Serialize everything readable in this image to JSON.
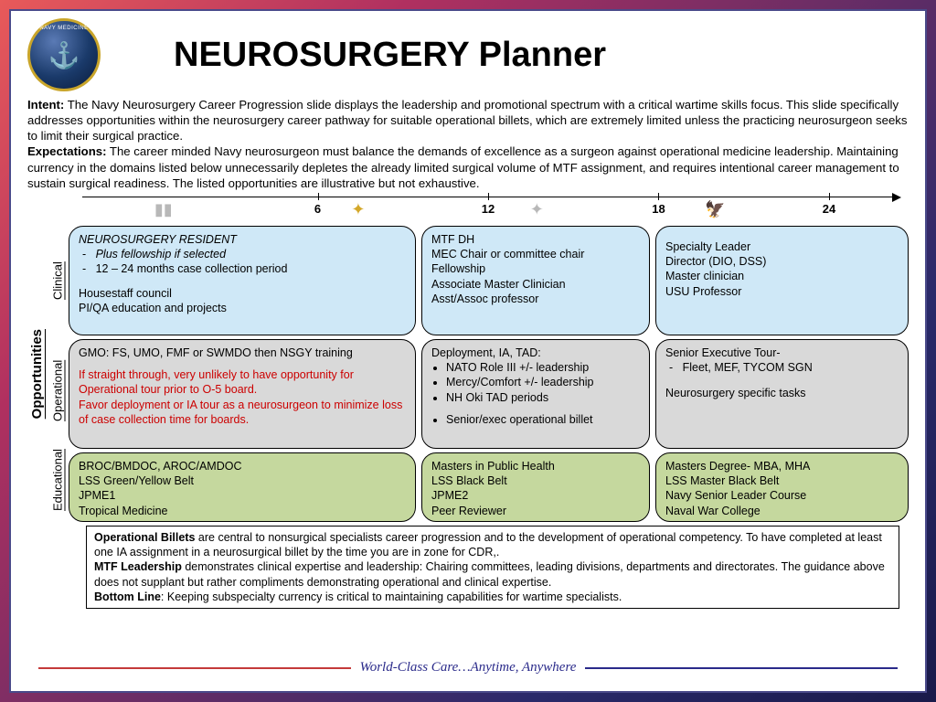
{
  "title": "NEUROSURGERY Planner",
  "intent_label": "Intent:",
  "intent_text": " The Navy Neurosurgery Career Progression slide displays the leadership and promotional spectrum with a critical wartime skills focus. This slide specifically addresses opportunities within the neurosurgery career pathway for suitable operational billets, which are extremely limited unless the practicing neurosurgeon seeks to limit their surgical practice.",
  "exp_label": "Expectations:",
  "exp_text": " The career minded Navy neurosurgeon must balance the demands of excellence as a surgeon against operational medicine leadership.  Maintaining currency in the domains listed below unnecessarily depletes the already limited surgical volume of MTF assignment, and requires intentional career management to sustain surgical readiness.  The listed opportunities are illustrative but not exhaustive.",
  "timeline": {
    "ticks": [
      "6",
      "12",
      "18",
      "24"
    ],
    "tick_positions_pct": [
      29,
      50,
      71,
      92
    ],
    "rank_icons": [
      {
        "pos_pct": 10,
        "glyph": "▮▮",
        "color": "#b8b8b8"
      },
      {
        "pos_pct": 34,
        "glyph": "✦",
        "color": "#d4a82a"
      },
      {
        "pos_pct": 56,
        "glyph": "✦",
        "color": "#b8b8b8"
      },
      {
        "pos_pct": 78,
        "glyph": "🦅",
        "color": "#999"
      }
    ]
  },
  "opportunities_label": "Opportunities",
  "row_labels": [
    "Clinical",
    "Operational",
    "Educational"
  ],
  "clinical": {
    "c1_title": "NEUROSURGERY RESIDENT",
    "c1_b1": "Plus fellowship if selected",
    "c1_b2": "12 – 24 months case collection period",
    "c1_l1": "Housestaff council",
    "c1_l2": "PI/QA education and projects",
    "c2": "MTF DH\nMEC Chair or committee chair\nFellowship\nAssociate Master Clinician\nAsst/Assoc professor",
    "c3": "Specialty Leader\nDirector (DIO, DSS)\nMaster clinician\nUSU Professor"
  },
  "operational": {
    "c1_l1": "GMO: FS, UMO, FMF or SWMDO then NSGY training",
    "c1_warn": "If straight through, very unlikely to have opportunity for Operational tour prior to O-5 board.\nFavor deployment or IA tour as a neurosurgeon to minimize loss of case collection time for boards.",
    "c2_head": "Deployment, IA, TAD:",
    "c2_b1": "NATO Role III +/- leadership",
    "c2_b2": "Mercy/Comfort +/- leadership",
    "c2_b3": "NH Oki TAD periods",
    "c2_b4": "Senior/exec operational billet",
    "c3_head": "Senior Executive Tour-",
    "c3_b1": "Fleet, MEF, TYCOM SGN",
    "c3_l2": "Neurosurgery specific tasks"
  },
  "educational": {
    "c1": "BROC/BMDOC, AROC/AMDOC\nLSS Green/Yellow Belt\nJPME1\nTropical Medicine",
    "c2": "Masters in Public Health\nLSS Black Belt\nJPME2\nPeer Reviewer",
    "c3": "Masters Degree- MBA, MHA\nLSS Master Black Belt\nNavy Senior Leader Course\nNaval War College"
  },
  "bottom": {
    "ob_label": "Operational Billets",
    "ob_text": " are central to nonsurgical specialists career progression and to the development of operational competency.  To have completed at least one IA assignment in a neurosurgical billet by the time you are in zone for CDR,.",
    "mtf_label": "MTF Leadership",
    "mtf_text": " demonstrates clinical expertise and leadership: Chairing committees, leading divisions, departments and directorates.  The guidance above does not supplant but rather compliments demonstrating operational and clinical expertise.",
    "bl_label": "Bottom Line",
    "bl_text": ": Keeping subspecialty currency is critical to maintaining capabilities for wartime specialists."
  },
  "footer": "World-Class Care…Anytime,  Anywhere"
}
